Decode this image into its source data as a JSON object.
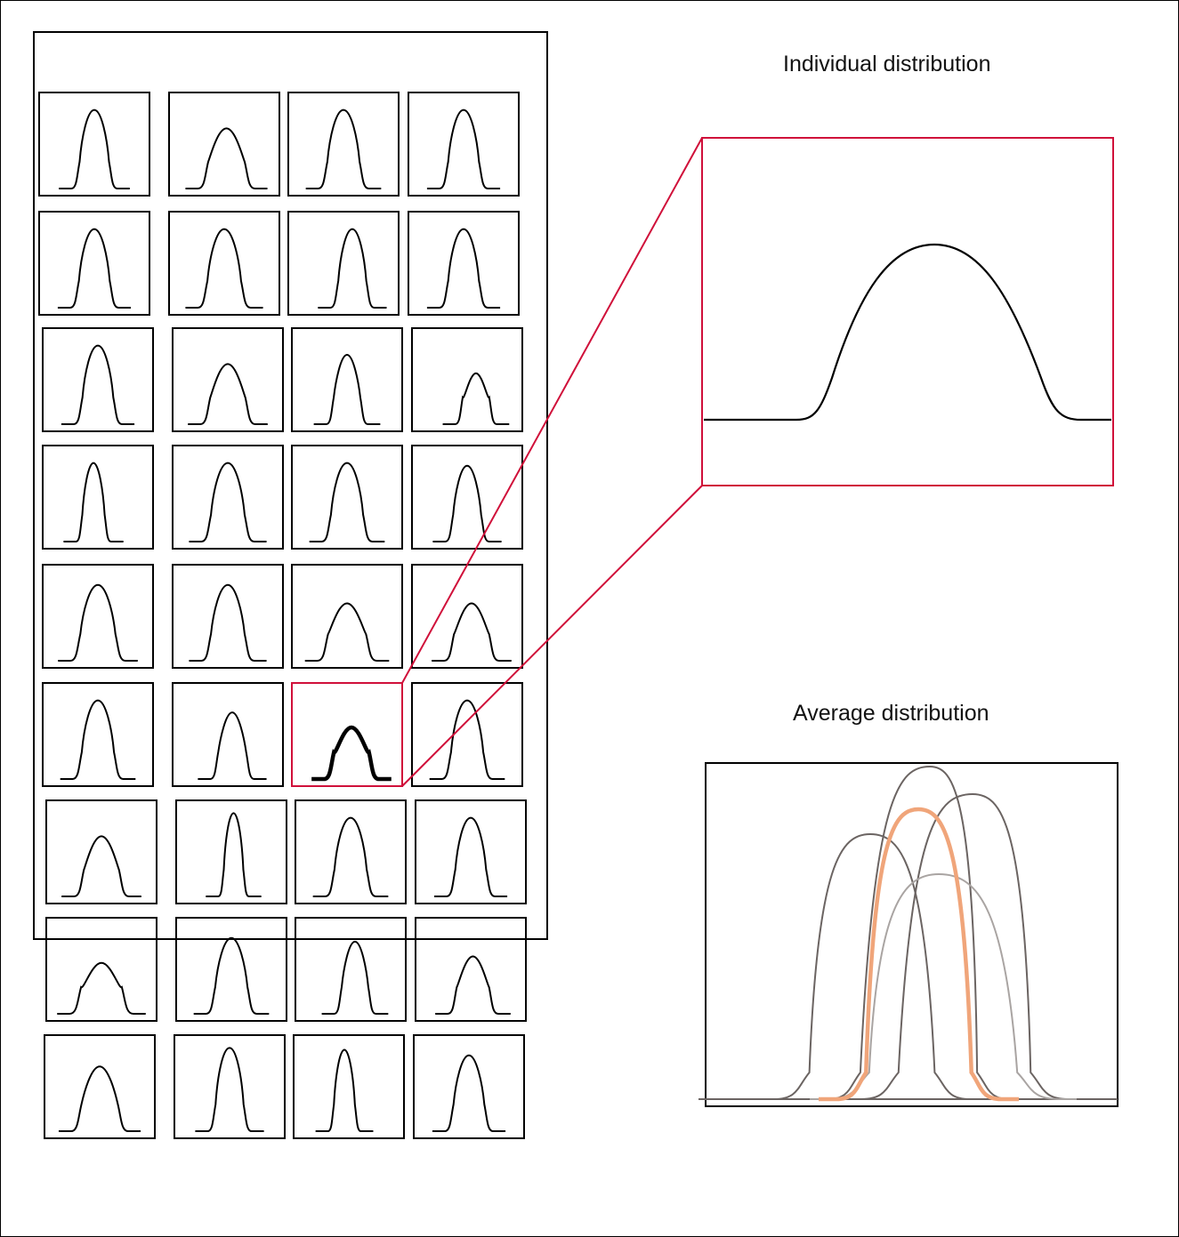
{
  "titles": {
    "individual": "Individual distribution",
    "average": "Average distribution"
  },
  "grid": {
    "rows": 9,
    "cols": 4,
    "highlighted_cell": {
      "row": 5,
      "col": 2
    }
  },
  "colors": {
    "line": "#000000",
    "highlight": "#d0103a",
    "average_curves": "#6b6462",
    "average_light_curve": "#a9a4a2",
    "average_mean_curve": "#f0a57a"
  }
}
